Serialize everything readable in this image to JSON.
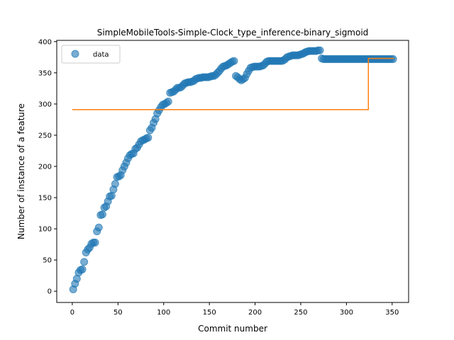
{
  "chart_data": {
    "type": "scatter",
    "title": "SimpleMobileTools-Simple-Clock_type_inference-binary_sigmoid",
    "xlabel": "Commit number",
    "ylabel": "Number of instance of a feature",
    "xlim": [
      -17,
      368
    ],
    "ylim": [
      -18,
      402
    ],
    "xticks": [
      0,
      50,
      100,
      150,
      200,
      250,
      300,
      350
    ],
    "yticks": [
      0,
      50,
      100,
      150,
      200,
      250,
      300,
      350,
      400
    ],
    "grid": false,
    "legend": {
      "position": "top-left",
      "entries": [
        "data"
      ]
    },
    "series": [
      {
        "name": "data",
        "kind": "scatter",
        "color": "#1f77b4",
        "x": [
          1,
          3,
          5,
          7,
          9,
          11,
          13,
          15,
          17,
          19,
          21,
          23,
          25,
          27,
          29,
          31,
          33,
          35,
          37,
          39,
          41,
          43,
          45,
          47,
          49,
          51,
          53,
          55,
          57,
          59,
          61,
          63,
          65,
          67,
          69,
          71,
          73,
          75,
          77,
          79,
          81,
          83,
          85,
          87,
          89,
          91,
          93,
          95,
          97,
          99,
          101,
          103,
          105,
          107,
          109,
          111,
          113,
          115,
          117,
          119,
          121,
          123,
          125,
          127,
          129,
          131,
          133,
          135,
          137,
          139,
          141,
          143,
          145,
          147,
          149,
          151,
          153,
          155,
          157,
          159,
          161,
          163,
          165,
          167,
          169,
          171,
          173,
          175,
          177,
          179,
          181,
          183,
          185,
          187,
          189,
          191,
          193,
          195,
          197,
          199,
          201,
          203,
          205,
          207,
          209,
          211,
          213,
          215,
          217,
          219,
          221,
          223,
          225,
          227,
          229,
          231,
          233,
          235,
          237,
          239,
          241,
          243,
          245,
          247,
          249,
          251,
          253,
          255,
          257,
          259,
          261,
          263,
          265,
          267,
          269,
          271,
          273,
          275,
          277,
          279,
          281,
          283,
          285,
          287,
          289,
          291,
          293,
          295,
          297,
          299,
          301,
          303,
          305,
          307,
          309,
          311,
          313,
          315,
          317,
          319,
          321,
          323,
          325,
          327,
          329,
          331,
          333,
          335,
          337,
          339,
          341,
          343,
          345,
          347,
          349,
          351
        ],
        "y": [
          3,
          12,
          20,
          30,
          34,
          35,
          47,
          62,
          67,
          70,
          76,
          78,
          78,
          96,
          102,
          122,
          123,
          134,
          136,
          144,
          152,
          153,
          163,
          172,
          183,
          184,
          186,
          194,
          200,
          206,
          213,
          218,
          220,
          221,
          228,
          230,
          235,
          240,
          242,
          243,
          245,
          246,
          258,
          262,
          270,
          276,
          285,
          290,
          295,
          299,
          300,
          302,
          304,
          318,
          319,
          320,
          323,
          326,
          326,
          327,
          330,
          333,
          334,
          335,
          335,
          336,
          337,
          340,
          341,
          342,
          342,
          343,
          343,
          343,
          343,
          344,
          345,
          345,
          347,
          350,
          353,
          357,
          360,
          361,
          362,
          364,
          366,
          368,
          369,
          345,
          343,
          340,
          338,
          340,
          342,
          348,
          353,
          358,
          359,
          360,
          360,
          360,
          360,
          361,
          362,
          365,
          368,
          369,
          369,
          369,
          369,
          369,
          369,
          369,
          369,
          370,
          372,
          375,
          376,
          377,
          378,
          378,
          378,
          378,
          379,
          380,
          381,
          383,
          384,
          385,
          385,
          385,
          385,
          385,
          386,
          386,
          373,
          372,
          372,
          372,
          372,
          372,
          372,
          372,
          372,
          372,
          372,
          372,
          372,
          372,
          372,
          372,
          372,
          372,
          372,
          372,
          372,
          372,
          372,
          372,
          372,
          372,
          372,
          372,
          372,
          372,
          372,
          372,
          372,
          372,
          372,
          372,
          372,
          372,
          372,
          372
        ]
      },
      {
        "name": "",
        "kind": "step",
        "color": "#ff7f0e",
        "x": [
          0,
          324,
          324,
          352
        ],
        "y": [
          291,
          291,
          373,
          373
        ]
      }
    ]
  }
}
